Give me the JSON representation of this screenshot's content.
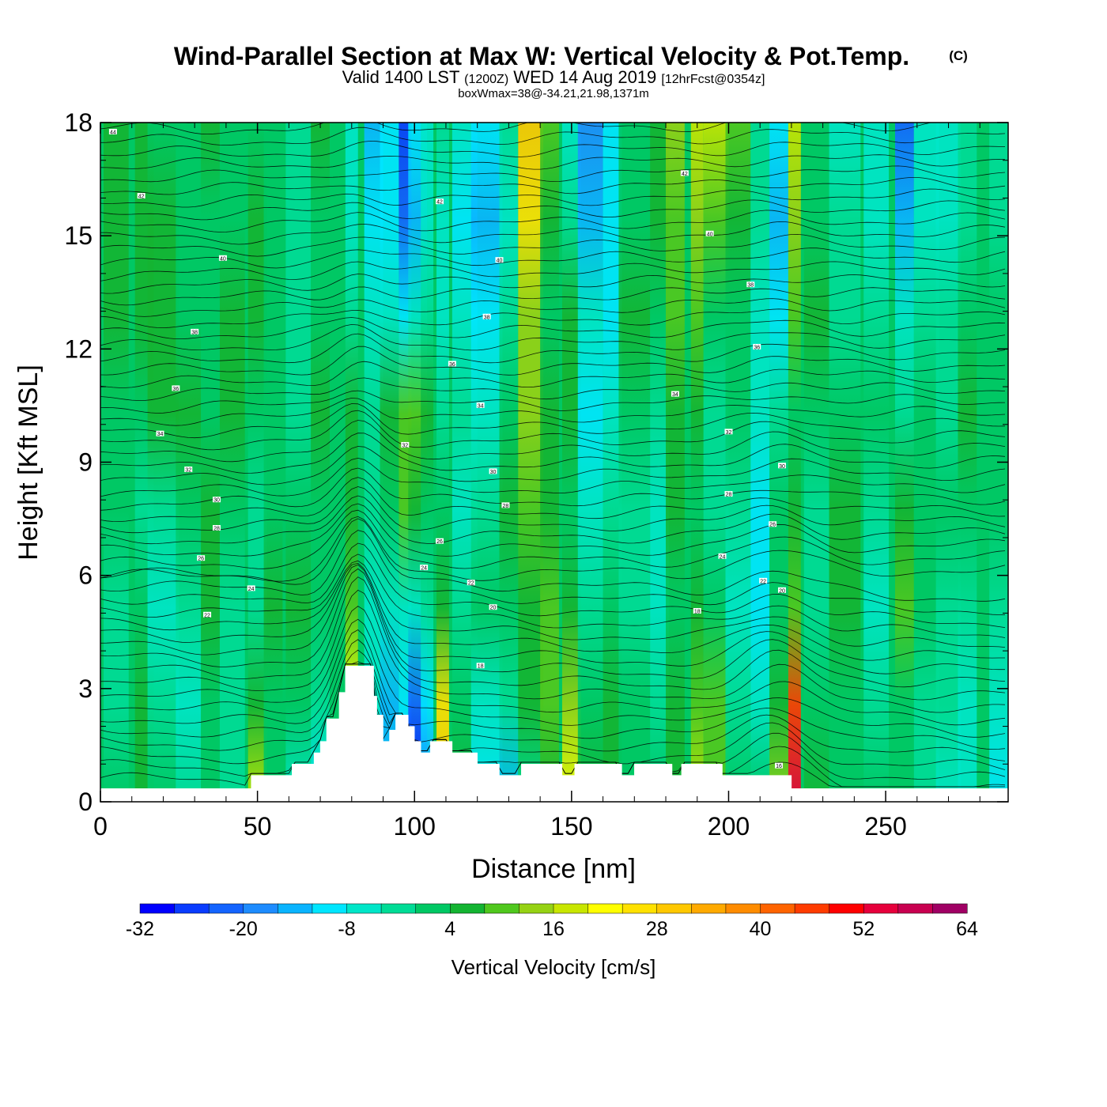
{
  "header": {
    "title": "Wind-Parallel Section at Max W: Vertical Velocity & Pot.Temp.",
    "title_mark": "(C)",
    "valid_prefix": "Valid 1400 LST",
    "valid_z": "(1200Z)",
    "valid_date": "WED 14 Aug 2019",
    "forecast": "[12hrFcst@0354z]",
    "boxwmax": "boxWmax=38@-34.21,21.98,1371m"
  },
  "chart_data": {
    "type": "heatmap",
    "xlabel": "Distance [nm]",
    "ylabel": "Height [Kft MSL]",
    "xlim": [
      0,
      289
    ],
    "ylim": [
      0,
      18
    ],
    "x_ticks": [
      0,
      50,
      100,
      150,
      200,
      250
    ],
    "y_ticks": [
      0,
      3,
      6,
      9,
      12,
      15,
      18
    ],
    "colorbar": {
      "title": "Vertical Velocity [cm/s]",
      "min": -32,
      "max": 64,
      "step": 4,
      "tick_labels": [
        "-32",
        "-20",
        "-8",
        "4",
        "16",
        "28",
        "40",
        "52",
        "64"
      ],
      "colors": [
        "#0000ff",
        "#0a3cff",
        "#1464ff",
        "#1e8cff",
        "#0ab4ff",
        "#00e6ff",
        "#00e6c8",
        "#00dc96",
        "#00c864",
        "#14b432",
        "#50c81e",
        "#96d214",
        "#c8e600",
        "#ffff00",
        "#ffe100",
        "#ffc800",
        "#ffaa00",
        "#ff8c00",
        "#ff6400",
        "#ff3c00",
        "#ff0000",
        "#e6003c",
        "#c80050",
        "#a00064"
      ]
    },
    "columns": [
      {
        "x": 5,
        "w": 4
      },
      {
        "x": 14,
        "w": 3
      },
      {
        "x": 20,
        "w": 5
      },
      {
        "x": 28,
        "w": 4
      },
      {
        "x": 35,
        "w": 3
      },
      {
        "x": 42,
        "w": 4
      },
      {
        "x": 50,
        "w": 3
      },
      {
        "x": 55,
        "w": 3
      },
      {
        "x": 63,
        "w": 4
      },
      {
        "x": 70,
        "w": 3
      },
      {
        "x": 80,
        "w": 2
      },
      {
        "x": 87,
        "w": 3
      },
      {
        "x": 92,
        "w": 3
      },
      {
        "x": 97,
        "w": 2
      },
      {
        "x": 101,
        "w": 3
      },
      {
        "x": 104,
        "w": 2
      },
      {
        "x": 109,
        "w": 2
      },
      {
        "x": 116,
        "w": 4
      },
      {
        "x": 123,
        "w": 5
      },
      {
        "x": 130,
        "w": 3
      },
      {
        "x": 137,
        "w": 4
      },
      {
        "x": 143,
        "w": 3
      },
      {
        "x": 150,
        "w": 3
      },
      {
        "x": 156,
        "w": 4
      },
      {
        "x": 163,
        "w": 3
      },
      {
        "x": 170,
        "w": 5
      },
      {
        "x": 178,
        "w": 3
      },
      {
        "x": 183,
        "w": 3
      },
      {
        "x": 190,
        "w": 2
      },
      {
        "x": 196,
        "w": 4
      },
      {
        "x": 203,
        "w": 4
      },
      {
        "x": 210,
        "w": 3
      },
      {
        "x": 216,
        "w": 3
      },
      {
        "x": 221,
        "w": 2
      },
      {
        "x": 228,
        "w": 4
      },
      {
        "x": 237,
        "w": 5
      },
      {
        "x": 247,
        "w": 4
      },
      {
        "x": 256,
        "w": 3
      },
      {
        "x": 263,
        "w": 4
      },
      {
        "x": 270,
        "w": 4
      },
      {
        "x": 276,
        "w": 3
      },
      {
        "x": 286,
        "w": 3
      }
    ],
    "cells": [
      [
        0,
        -4,
        -4,
        2,
        2,
        4,
        4,
        4
      ],
      [
        6,
        6,
        2,
        -4,
        2,
        6,
        6,
        4
      ],
      [
        2,
        -2,
        -6,
        -2,
        4,
        6,
        4,
        2
      ],
      [
        -2,
        -6,
        -4,
        2,
        4,
        2,
        2,
        2
      ],
      [
        2,
        2,
        6,
        4,
        2,
        0,
        2,
        4
      ],
      [
        -4,
        -2,
        -4,
        0,
        4,
        4,
        2,
        2
      ],
      [
        18,
        4,
        -2,
        -2,
        2,
        4,
        4,
        2
      ],
      [
        0,
        2,
        6,
        2,
        2,
        2,
        2,
        2
      ],
      [
        -8,
        2,
        4,
        0,
        -2,
        -4,
        -2,
        -2
      ],
      [
        -12,
        -4,
        2,
        2,
        6,
        2,
        2,
        4
      ],
      [
        24,
        22,
        8,
        4,
        4,
        -4,
        -8,
        -8
      ],
      [
        -10,
        -8,
        -6,
        -2,
        -4,
        -6,
        -12,
        -14
      ],
      [
        -16,
        -14,
        -8,
        0,
        6,
        -8,
        -12,
        -12
      ],
      [
        -14,
        -12,
        -6,
        8,
        10,
        -10,
        -24,
        -28
      ],
      [
        -30,
        -22,
        -6,
        4,
        8,
        -6,
        -16,
        -12
      ],
      [
        -20,
        -10,
        -2,
        2,
        4,
        -4,
        -8,
        -6
      ],
      [
        30,
        24,
        4,
        2,
        -2,
        -8,
        -6,
        -4
      ],
      [
        4,
        2,
        -4,
        -6,
        -4,
        -8,
        -10,
        -6
      ],
      [
        -10,
        -6,
        0,
        -2,
        -6,
        -12,
        -16,
        -10
      ],
      [
        -14,
        -4,
        2,
        4,
        2,
        -2,
        -6,
        -2
      ],
      [
        -2,
        4,
        6,
        10,
        12,
        14,
        24,
        28
      ],
      [
        4,
        8,
        10,
        6,
        4,
        2,
        6,
        10
      ],
      [
        20,
        12,
        4,
        2,
        6,
        4,
        -4,
        -8
      ],
      [
        4,
        2,
        -2,
        -8,
        -10,
        -8,
        -14,
        -18
      ],
      [
        6,
        4,
        2,
        -4,
        -8,
        -12,
        -10,
        -10
      ],
      [
        2,
        0,
        -4,
        -2,
        2,
        4,
        2,
        2
      ],
      [
        2,
        -2,
        -6,
        -8,
        -4,
        2,
        4,
        6
      ],
      [
        6,
        4,
        2,
        4,
        6,
        8,
        10,
        12
      ],
      [
        16,
        10,
        4,
        0,
        4,
        10,
        14,
        16
      ],
      [
        10,
        8,
        2,
        -2,
        -4,
        2,
        10,
        16
      ],
      [
        0,
        -4,
        -8,
        -4,
        0,
        2,
        4,
        8
      ],
      [
        2,
        -6,
        -12,
        -10,
        -8,
        -6,
        -4,
        -2
      ],
      [
        12,
        6,
        0,
        2,
        -4,
        -10,
        -14,
        -12
      ],
      [
        52,
        44,
        10,
        4,
        2,
        8,
        12,
        16
      ],
      [
        4,
        2,
        -4,
        -2,
        2,
        4,
        2,
        2
      ],
      [
        2,
        2,
        6,
        4,
        2,
        -2,
        -4,
        -6
      ],
      [
        2,
        -4,
        -6,
        -2,
        0,
        -4,
        -6,
        -8
      ],
      [
        0,
        2,
        8,
        4,
        -2,
        -8,
        -14,
        -22
      ],
      [
        -4,
        -2,
        2,
        2,
        0,
        -4,
        -8,
        -8
      ],
      [
        -6,
        -4,
        -2,
        0,
        -2,
        -4,
        -8,
        -6
      ],
      [
        -8,
        -6,
        -2,
        2,
        4,
        2,
        -2,
        -4
      ],
      [
        -12,
        -8,
        -4,
        0,
        2,
        2,
        -2,
        -4
      ]
    ],
    "terrain": [
      [
        0,
        0.35
      ],
      [
        45,
        0.35
      ],
      [
        48,
        0.35
      ],
      [
        48,
        0.7
      ],
      [
        61,
        0.7
      ],
      [
        61,
        1.0
      ],
      [
        68,
        1.0
      ],
      [
        68,
        1.3
      ],
      [
        70,
        1.3
      ],
      [
        70,
        1.6
      ],
      [
        72,
        1.6
      ],
      [
        72,
        2.2
      ],
      [
        76,
        2.2
      ],
      [
        76,
        2.9
      ],
      [
        78,
        2.9
      ],
      [
        78,
        3.6
      ],
      [
        87,
        3.6
      ],
      [
        87,
        2.8
      ],
      [
        88,
        2.8
      ],
      [
        88,
        2.3
      ],
      [
        90,
        2.3
      ],
      [
        90,
        1.6
      ],
      [
        92,
        1.6
      ],
      [
        92,
        1.9
      ],
      [
        94,
        1.9
      ],
      [
        94,
        2.3
      ],
      [
        98,
        2.3
      ],
      [
        98,
        2.0
      ],
      [
        100,
        2.0
      ],
      [
        100,
        1.6
      ],
      [
        102,
        1.6
      ],
      [
        102,
        1.3
      ],
      [
        105,
        1.3
      ],
      [
        105,
        1.6
      ],
      [
        112,
        1.6
      ],
      [
        112,
        1.3
      ],
      [
        120,
        1.3
      ],
      [
        120,
        1.0
      ],
      [
        127,
        1.0
      ],
      [
        127,
        0.7
      ],
      [
        134,
        0.7
      ],
      [
        134,
        1.0
      ],
      [
        147,
        1.0
      ],
      [
        147,
        0.7
      ],
      [
        151,
        0.7
      ],
      [
        151,
        1.0
      ],
      [
        166,
        1.0
      ],
      [
        166,
        0.7
      ],
      [
        170,
        0.7
      ],
      [
        170,
        1.0
      ],
      [
        182,
        1.0
      ],
      [
        182,
        0.7
      ],
      [
        185,
        0.7
      ],
      [
        185,
        1.0
      ],
      [
        198,
        1.0
      ],
      [
        198,
        0.7
      ],
      [
        220,
        0.7
      ],
      [
        220,
        0.35
      ],
      [
        289,
        0.35
      ]
    ],
    "theta_labels": [
      {
        "x": 4,
        "y": 17.75,
        "t": "44"
      },
      {
        "x": 13,
        "y": 16.05,
        "t": "42"
      },
      {
        "x": 39,
        "y": 14.4,
        "t": "40"
      },
      {
        "x": 30,
        "y": 12.45,
        "t": "38"
      },
      {
        "x": 24,
        "y": 10.95,
        "t": "36"
      },
      {
        "x": 19,
        "y": 9.75,
        "t": "34"
      },
      {
        "x": 28,
        "y": 8.8,
        "t": "32"
      },
      {
        "x": 37,
        "y": 8.0,
        "t": "30"
      },
      {
        "x": 37,
        "y": 7.25,
        "t": "28"
      },
      {
        "x": 32,
        "y": 6.45,
        "t": "26"
      },
      {
        "x": 48,
        "y": 5.65,
        "t": "24"
      },
      {
        "x": 34,
        "y": 4.95,
        "t": "22"
      },
      {
        "x": 108,
        "y": 15.9,
        "t": "42"
      },
      {
        "x": 127,
        "y": 14.35,
        "t": "40"
      },
      {
        "x": 123,
        "y": 12.85,
        "t": "38"
      },
      {
        "x": 112,
        "y": 11.6,
        "t": "36"
      },
      {
        "x": 121,
        "y": 10.5,
        "t": "34"
      },
      {
        "x": 97,
        "y": 9.45,
        "t": "32"
      },
      {
        "x": 125,
        "y": 8.75,
        "t": "30"
      },
      {
        "x": 129,
        "y": 7.85,
        "t": "28"
      },
      {
        "x": 108,
        "y": 6.9,
        "t": "26"
      },
      {
        "x": 103,
        "y": 6.2,
        "t": "24"
      },
      {
        "x": 118,
        "y": 5.8,
        "t": "22"
      },
      {
        "x": 125,
        "y": 5.15,
        "t": "20"
      },
      {
        "x": 121,
        "y": 3.6,
        "t": "18"
      },
      {
        "x": 186,
        "y": 16.65,
        "t": "42"
      },
      {
        "x": 194,
        "y": 15.05,
        "t": "40"
      },
      {
        "x": 207,
        "y": 13.7,
        "t": "38"
      },
      {
        "x": 209,
        "y": 12.05,
        "t": "36"
      },
      {
        "x": 183,
        "y": 10.8,
        "t": "34"
      },
      {
        "x": 200,
        "y": 9.8,
        "t": "32"
      },
      {
        "x": 217,
        "y": 8.9,
        "t": "30"
      },
      {
        "x": 200,
        "y": 8.15,
        "t": "28"
      },
      {
        "x": 214,
        "y": 7.35,
        "t": "26"
      },
      {
        "x": 198,
        "y": 6.5,
        "t": "24"
      },
      {
        "x": 211,
        "y": 5.85,
        "t": "22"
      },
      {
        "x": 217,
        "y": 5.6,
        "t": "20"
      },
      {
        "x": 190,
        "y": 5.05,
        "t": "18"
      },
      {
        "x": 216,
        "y": 0.95,
        "t": "16"
      }
    ]
  }
}
